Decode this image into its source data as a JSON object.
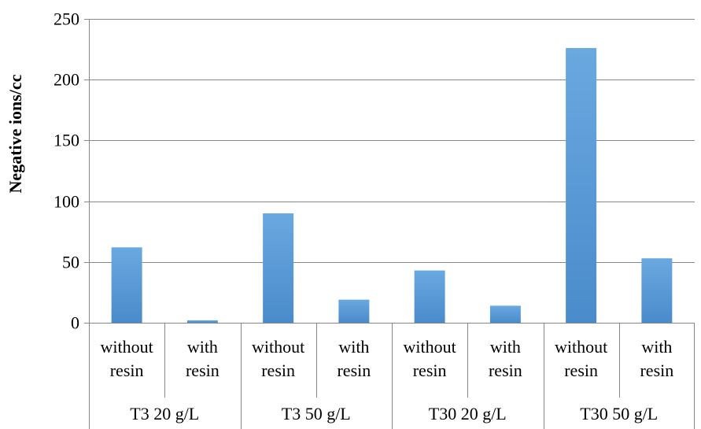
{
  "chart_data": {
    "type": "bar",
    "title": "",
    "ylabel": "Negative ions/cc",
    "xlabel": "",
    "ylim": [
      0,
      250
    ],
    "yticks": [
      0,
      50,
      100,
      150,
      200,
      250
    ],
    "grid": true,
    "legend": "none",
    "bar_color": "#5B9BD5",
    "groups": [
      {
        "label": "T3 20 g/L",
        "categories": [
          [
            "without",
            "resin"
          ],
          [
            "with",
            "resin"
          ]
        ],
        "values": [
          62,
          2
        ]
      },
      {
        "label": "T3 50 g/L",
        "categories": [
          [
            "without",
            "resin"
          ],
          [
            "with",
            "resin"
          ]
        ],
        "values": [
          90,
          19
        ]
      },
      {
        "label": "T30 20 g/L",
        "categories": [
          [
            "without",
            "resin"
          ],
          [
            "with",
            "resin"
          ]
        ],
        "values": [
          43,
          14
        ]
      },
      {
        "label": "T30 50 g/L",
        "categories": [
          [
            "without",
            "resin"
          ],
          [
            "with",
            "resin"
          ]
        ],
        "values": [
          226,
          53
        ]
      }
    ]
  }
}
